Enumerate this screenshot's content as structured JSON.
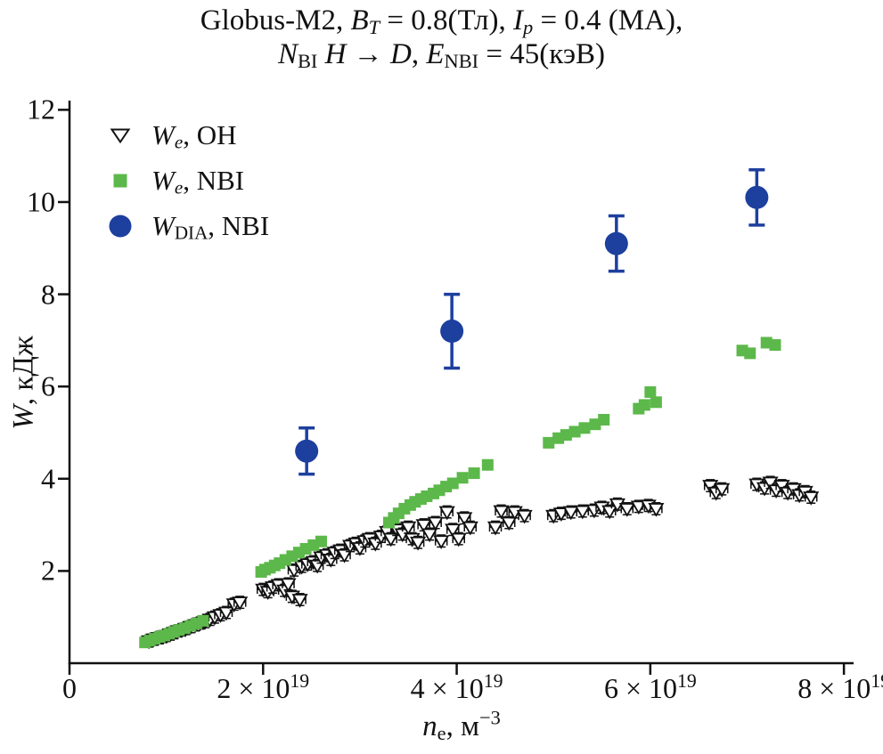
{
  "title": {
    "line1_text": "Globus-M2, BT = 0.8(Тл), Ip = 0.4 (МА),",
    "line2_text": "NBI H → D, ENBI = 45(кэВ)",
    "line1_segments": [
      {
        "text": "Globus-M2, "
      },
      {
        "text": "B",
        "italic": true
      },
      {
        "text": "T",
        "italic": true,
        "sub": true
      },
      {
        "text": " = 0.8(Тл), "
      },
      {
        "text": "I",
        "italic": true
      },
      {
        "text": "p",
        "italic": true,
        "sub": true
      },
      {
        "text": " = 0.4 (МА),"
      }
    ],
    "line2_segments": [
      {
        "text": "N",
        "italic": true
      },
      {
        "text": "BI",
        "sub": true
      },
      {
        "text": " "
      },
      {
        "text": "H",
        "italic": true
      },
      {
        "text": " → "
      },
      {
        "text": "D",
        "italic": true
      },
      {
        "text": ", "
      },
      {
        "text": "E",
        "italic": true
      },
      {
        "text": "NBI",
        "sub": true
      },
      {
        "text": " = 45(кэВ)"
      }
    ]
  },
  "colors": {
    "background": "#ffffff",
    "axis": "#111111",
    "oh_black": "#121212",
    "nbi_green": "#5cb84a",
    "dia_blue": "#1d3f9e"
  },
  "chart_data": {
    "type": "scatter",
    "title": "Globus-M2, BT = 0.8(Тл), Ip = 0.4 (МА), NBI H → D, ENBI = 45(кэВ)",
    "grid": false,
    "legend_position": "upper-left",
    "x_axis": {
      "label_text": "ne, м−3",
      "label_segments": [
        {
          "text": "n",
          "italic": true
        },
        {
          "text": "e",
          "sub": true
        },
        {
          "text": ", м"
        },
        {
          "text": "−3",
          "sup": true
        }
      ],
      "unit_scale": "1e19 m^-3 per unit",
      "lim": [
        0,
        8.1
      ],
      "ticks": [
        {
          "value": 0,
          "segments": [
            {
              "text": "0"
            }
          ]
        },
        {
          "value": 2,
          "segments": [
            {
              "text": "2 × 10"
            },
            {
              "text": "19",
              "sup": true
            }
          ]
        },
        {
          "value": 4,
          "segments": [
            {
              "text": "4 × 10"
            },
            {
              "text": "19",
              "sup": true
            }
          ]
        },
        {
          "value": 6,
          "segments": [
            {
              "text": "6 × 10"
            },
            {
              "text": "19",
              "sup": true
            }
          ]
        },
        {
          "value": 8,
          "segments": [
            {
              "text": "8 × 10"
            },
            {
              "text": "19",
              "sup": true
            }
          ]
        }
      ]
    },
    "y_axis": {
      "label_text": "W, кДж",
      "label_segments": [
        {
          "text": "W",
          "italic": true
        },
        {
          "text": ", кДж"
        }
      ],
      "unit": "kJ",
      "lim": [
        0,
        12.2
      ],
      "ticks": [
        {
          "value": 2,
          "label": "2"
        },
        {
          "value": 4,
          "label": "4"
        },
        {
          "value": 6,
          "label": "6"
        },
        {
          "value": 8,
          "label": "8"
        },
        {
          "value": 10,
          "label": "10"
        },
        {
          "value": 12,
          "label": "12"
        }
      ]
    },
    "series": [
      {
        "id": "we-oh",
        "label_text": "We, OH",
        "label_segments": [
          {
            "text": "W",
            "italic": true
          },
          {
            "text": "e",
            "italic": true,
            "sub": true
          },
          {
            "text": ", OH"
          }
        ],
        "marker": "triangle-down-open",
        "color": "#121212",
        "marker_fill": "#ffffff",
        "yerr": 0.13,
        "xerr": 0.06,
        "points": [
          [
            0.82,
            0.48
          ],
          [
            0.87,
            0.52
          ],
          [
            0.92,
            0.55
          ],
          [
            0.97,
            0.58
          ],
          [
            1.0,
            0.6
          ],
          [
            1.04,
            0.63
          ],
          [
            1.08,
            0.66
          ],
          [
            1.12,
            0.7
          ],
          [
            1.16,
            0.72
          ],
          [
            1.2,
            0.75
          ],
          [
            1.25,
            0.79
          ],
          [
            1.3,
            0.83
          ],
          [
            1.35,
            0.87
          ],
          [
            1.4,
            0.9
          ],
          [
            1.45,
            0.95
          ],
          [
            1.5,
            1.0
          ],
          [
            1.56,
            1.05
          ],
          [
            1.62,
            1.1
          ],
          [
            1.7,
            1.28
          ],
          [
            1.76,
            1.32
          ],
          [
            2.0,
            1.6
          ],
          [
            2.05,
            1.55
          ],
          [
            2.1,
            1.65
          ],
          [
            2.16,
            1.7
          ],
          [
            2.22,
            1.58
          ],
          [
            2.26,
            1.72
          ],
          [
            2.3,
            1.45
          ],
          [
            2.32,
            2.02
          ],
          [
            2.38,
            1.38
          ],
          [
            2.4,
            2.1
          ],
          [
            2.46,
            2.15
          ],
          [
            2.52,
            2.2
          ],
          [
            2.56,
            2.12
          ],
          [
            2.6,
            2.3
          ],
          [
            2.66,
            2.35
          ],
          [
            2.7,
            2.25
          ],
          [
            2.74,
            2.4
          ],
          [
            2.8,
            2.45
          ],
          [
            2.84,
            2.35
          ],
          [
            2.9,
            2.55
          ],
          [
            2.96,
            2.6
          ],
          [
            3.0,
            2.5
          ],
          [
            3.05,
            2.65
          ],
          [
            3.1,
            2.7
          ],
          [
            3.16,
            2.6
          ],
          [
            3.22,
            2.75
          ],
          [
            3.28,
            2.85
          ],
          [
            3.32,
            2.7
          ],
          [
            3.38,
            2.9
          ],
          [
            3.44,
            2.8
          ],
          [
            3.5,
            2.95
          ],
          [
            3.54,
            2.7
          ],
          [
            3.6,
            2.62
          ],
          [
            3.66,
            3.0
          ],
          [
            3.72,
            2.8
          ],
          [
            3.78,
            3.05
          ],
          [
            3.84,
            2.65
          ],
          [
            3.9,
            3.28
          ],
          [
            3.96,
            2.9
          ],
          [
            4.02,
            2.7
          ],
          [
            4.08,
            3.15
          ],
          [
            4.14,
            2.95
          ],
          [
            4.4,
            2.95
          ],
          [
            4.46,
            3.3
          ],
          [
            4.54,
            3.05
          ],
          [
            4.6,
            3.28
          ],
          [
            4.7,
            3.2
          ],
          [
            5.0,
            3.2
          ],
          [
            5.08,
            3.25
          ],
          [
            5.18,
            3.28
          ],
          [
            5.3,
            3.3
          ],
          [
            5.42,
            3.32
          ],
          [
            5.5,
            3.38
          ],
          [
            5.58,
            3.3
          ],
          [
            5.66,
            3.45
          ],
          [
            5.76,
            3.35
          ],
          [
            5.88,
            3.4
          ],
          [
            5.98,
            3.42
          ],
          [
            6.06,
            3.35
          ],
          [
            6.62,
            3.85
          ],
          [
            6.68,
            3.7
          ],
          [
            6.74,
            3.78
          ],
          [
            7.1,
            3.88
          ],
          [
            7.18,
            3.8
          ],
          [
            7.24,
            3.92
          ],
          [
            7.3,
            3.75
          ],
          [
            7.36,
            3.85
          ],
          [
            7.42,
            3.7
          ],
          [
            7.48,
            3.78
          ],
          [
            7.54,
            3.65
          ],
          [
            7.6,
            3.72
          ],
          [
            7.66,
            3.6
          ]
        ]
      },
      {
        "id": "we-nbi",
        "label_text": "We, NBI",
        "label_segments": [
          {
            "text": "W",
            "italic": true
          },
          {
            "text": "e",
            "italic": true,
            "sub": true
          },
          {
            "text": ", NBI"
          }
        ],
        "marker": "square-filled",
        "color": "#5cb84a",
        "points": [
          [
            0.78,
            0.45
          ],
          [
            0.83,
            0.49
          ],
          [
            0.88,
            0.53
          ],
          [
            0.93,
            0.57
          ],
          [
            0.98,
            0.6
          ],
          [
            1.03,
            0.64
          ],
          [
            1.08,
            0.68
          ],
          [
            1.13,
            0.72
          ],
          [
            1.19,
            0.76
          ],
          [
            1.25,
            0.81
          ],
          [
            1.31,
            0.86
          ],
          [
            1.38,
            0.92
          ],
          [
            1.98,
            1.98
          ],
          [
            2.02,
            2.03
          ],
          [
            2.07,
            2.07
          ],
          [
            2.12,
            2.12
          ],
          [
            2.17,
            2.17
          ],
          [
            2.23,
            2.24
          ],
          [
            2.3,
            2.32
          ],
          [
            2.37,
            2.4
          ],
          [
            2.44,
            2.48
          ],
          [
            2.52,
            2.56
          ],
          [
            2.6,
            2.64
          ],
          [
            3.3,
            3.05
          ],
          [
            3.35,
            3.15
          ],
          [
            3.4,
            3.25
          ],
          [
            3.46,
            3.35
          ],
          [
            3.52,
            3.43
          ],
          [
            3.57,
            3.5
          ],
          [
            3.63,
            3.56
          ],
          [
            3.69,
            3.62
          ],
          [
            3.76,
            3.68
          ],
          [
            3.82,
            3.75
          ],
          [
            3.89,
            3.83
          ],
          [
            3.96,
            3.9
          ],
          [
            4.06,
            4.02
          ],
          [
            4.18,
            4.12
          ],
          [
            4.32,
            4.3
          ],
          [
            4.95,
            4.78
          ],
          [
            5.05,
            4.88
          ],
          [
            5.13,
            4.95
          ],
          [
            5.22,
            5.02
          ],
          [
            5.32,
            5.1
          ],
          [
            5.43,
            5.18
          ],
          [
            5.52,
            5.28
          ],
          [
            5.88,
            5.52
          ],
          [
            5.94,
            5.6
          ],
          [
            6.0,
            5.88
          ],
          [
            6.06,
            5.66
          ],
          [
            6.95,
            6.78
          ],
          [
            7.03,
            6.72
          ],
          [
            7.2,
            6.95
          ],
          [
            7.29,
            6.9
          ]
        ]
      },
      {
        "id": "wdia-nbi",
        "label_text": "WDIA, NBI",
        "label_segments": [
          {
            "text": "W",
            "italic": true
          },
          {
            "text": "DIA",
            "sub": true
          },
          {
            "text": ", NBI"
          }
        ],
        "marker": "circle-filled",
        "color": "#1d3f9e",
        "points": [
          [
            2.45,
            4.6,
            0.5
          ],
          [
            3.95,
            7.2,
            0.8
          ],
          [
            5.65,
            9.1,
            0.6
          ],
          [
            7.1,
            10.1,
            0.6
          ]
        ]
      }
    ]
  }
}
